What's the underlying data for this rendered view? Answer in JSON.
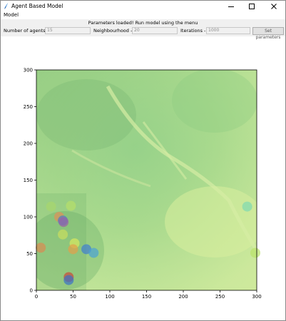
{
  "window": {
    "title": "Agent Based Model"
  },
  "menu": {
    "items": [
      "Model"
    ]
  },
  "status": "Parameters loaded! Run model using the menu",
  "params": [
    {
      "label": "Number of agents ->",
      "value": "15"
    },
    {
      "label": "Neighbourhood ->",
      "value": "20"
    },
    {
      "label": "Iterations ->",
      "value": "1000"
    }
  ],
  "set_button_label": "Set parameters",
  "chart_data": {
    "type": "scatter",
    "background": "environment raster (green terrain)",
    "xlim": [
      0,
      300
    ],
    "ylim": [
      0,
      300
    ],
    "xticks": [
      0,
      50,
      100,
      150,
      200,
      250,
      300
    ],
    "yticks": [
      0,
      50,
      100,
      150,
      200,
      250,
      300
    ],
    "ylabel_ticks": [
      "0",
      "50",
      "100",
      "150",
      "200",
      "250",
      "300"
    ],
    "xlabel_ticks": [
      "0",
      "50",
      "100",
      "150",
      "200",
      "250",
      "300"
    ],
    "agents": [
      {
        "x": 20,
        "y": 114,
        "color": "#a8d56c"
      },
      {
        "x": 47,
        "y": 115,
        "color": "#b7e06a"
      },
      {
        "x": 31,
        "y": 100,
        "color": "#e0905a"
      },
      {
        "x": 36,
        "y": 95,
        "color": "#4a7fc4"
      },
      {
        "x": 37,
        "y": 93,
        "color": "#9a5fa8"
      },
      {
        "x": 36,
        "y": 76,
        "color": "#c9de5e"
      },
      {
        "x": 52,
        "y": 64,
        "color": "#d8e85e"
      },
      {
        "x": 50,
        "y": 56,
        "color": "#e3a04a"
      },
      {
        "x": 68,
        "y": 56,
        "color": "#3f7ed2"
      },
      {
        "x": 78,
        "y": 51,
        "color": "#4aa3d6"
      },
      {
        "x": 6,
        "y": 58,
        "color": "#d98a52"
      },
      {
        "x": 44,
        "y": 18,
        "color": "#c9483a"
      },
      {
        "x": 44,
        "y": 14,
        "color": "#3c70c8"
      },
      {
        "x": 287,
        "y": 114,
        "color": "#7fd8b0"
      },
      {
        "x": 298,
        "y": 51,
        "color": "#b9e36a"
      }
    ]
  }
}
